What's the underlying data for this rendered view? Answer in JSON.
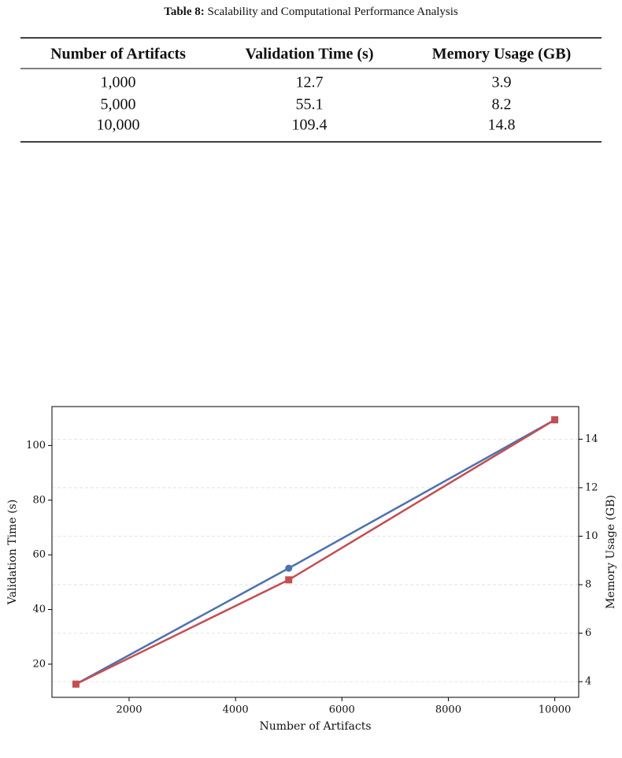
{
  "table": {
    "caption_label": "Table 8:",
    "caption": "Scalability and Computational Performance Analysis",
    "header": [
      "Number of Artifacts",
      "Validation Time (s)",
      "Memory Usage (GB)"
    ],
    "rows": [
      [
        "1,000",
        "12.7",
        "3.9"
      ],
      [
        "5,000",
        "55.1",
        "8.2"
      ],
      [
        "10,000",
        "109.4",
        "14.8"
      ]
    ]
  },
  "chart_data": {
    "type": "line",
    "xlabel": "Number of Artifacts",
    "ylabel": "Validation Time (s)",
    "y2label": "Memory Usage (GB)",
    "x": [
      1000,
      5000,
      10000
    ],
    "series": [
      {
        "color": "#4c72b0",
        "marker": "circle",
        "values": [
          12.7,
          55.1,
          109.4
        ]
      },
      {
        "color": "#c44e52",
        "marker": "square",
        "axis": "y2",
        "values": [
          3.9,
          8.2,
          14.8
        ]
      }
    ],
    "xlim": [
      550,
      10450
    ],
    "xticks": [
      2000,
      4000,
      6000,
      8000,
      10000
    ],
    "ylim": [
      7.87,
      114.24
    ],
    "yticks": [
      20,
      40,
      60,
      80,
      100
    ],
    "y2lim": [
      3.355,
      15.345
    ],
    "y2ticks": [
      4,
      6,
      8,
      10,
      12,
      14
    ],
    "grid": "y2"
  }
}
